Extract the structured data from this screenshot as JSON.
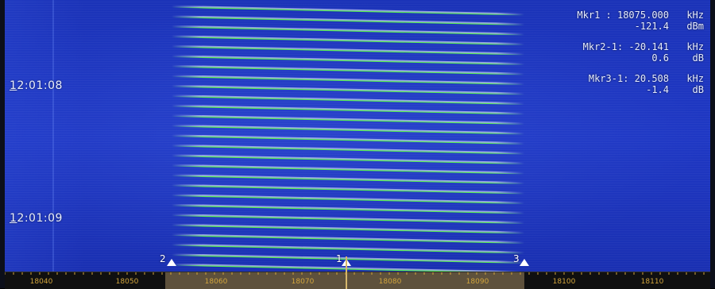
{
  "time_labels": [
    {
      "prefix": "1",
      "rest": "2:01:08"
    },
    {
      "prefix": "1",
      "rest": "2:01:09"
    }
  ],
  "readout": {
    "mkr1": {
      "label": "Mkr1  : 18075.000",
      "unit": "kHz",
      "sub_value": "-121.4",
      "sub_unit": "dBm"
    },
    "mkr2": {
      "label": "Mkr2-1: -20.141",
      "unit": "kHz",
      "sub_value": "0.6",
      "sub_unit": "dB"
    },
    "mkr3": {
      "label": "Mkr3-1: 20.508",
      "unit": "kHz",
      "sub_value": "-1.4",
      "sub_unit": "dB"
    }
  },
  "frequency_axis": {
    "unit": "kHz",
    "tick_labels": [
      "18040",
      "18050",
      "18060",
      "18070",
      "18080",
      "18090",
      "18100",
      "18110"
    ]
  },
  "markers": [
    {
      "id": "2"
    },
    {
      "id": "1"
    },
    {
      "id": "3"
    }
  ],
  "colors": {
    "waterfall_bg": "#1f38c4",
    "signal_line_green": "#4dff3a",
    "signal_line_white": "#e9f1ff",
    "axis_text": "#d2a53c",
    "selection_band": "#5e513c",
    "cursor": "#d6b86d",
    "marker": "#ffffff"
  }
}
